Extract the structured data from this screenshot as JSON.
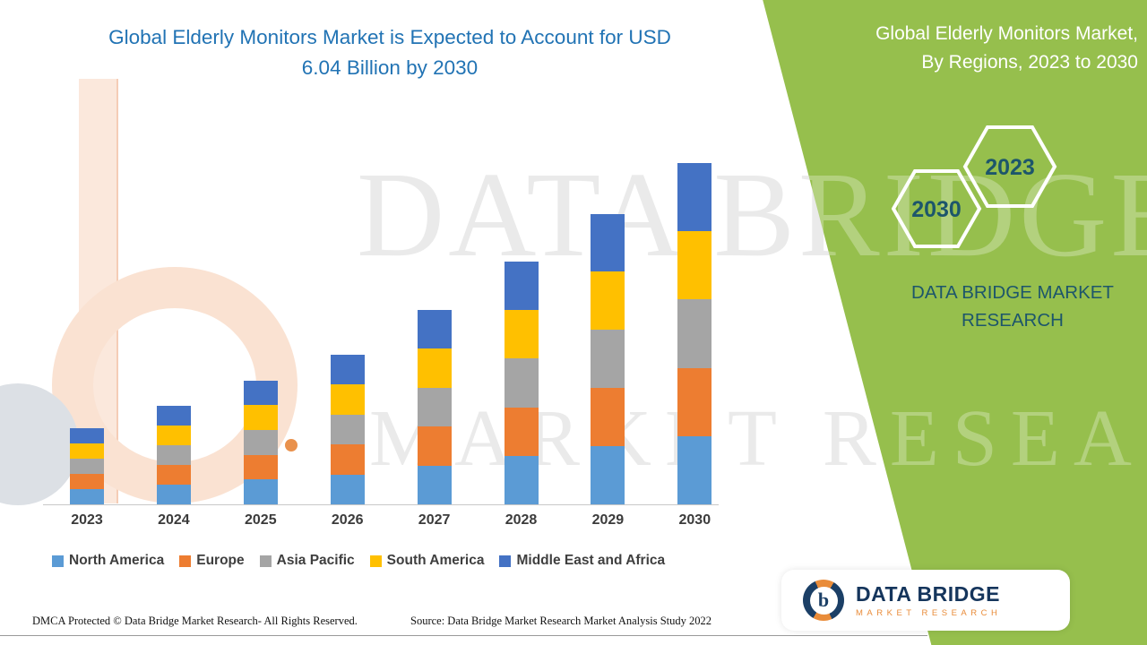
{
  "title": {
    "line1": "Global Elderly Monitors Market is Expected to Account for USD",
    "line2": "6.04 Billion by 2030"
  },
  "side_panel": {
    "heading_line1": "Global Elderly Monitors Market,",
    "heading_line2": "By Regions, 2023 to 2030",
    "hexagon_left": "2030",
    "hexagon_right": "2023",
    "brand": "DATA BRIDGE MARKET RESEARCH",
    "panel_color": "#96BF4D"
  },
  "watermark": {
    "line1": "DATA BRIDGE",
    "line2": "MARKET RESEARCH"
  },
  "logo": {
    "letter": "b",
    "name": "DATA BRIDGE",
    "tagline": "MARKET RESEARCH"
  },
  "footer": {
    "dmca": "DMCA Protected © Data Bridge Market Research- All Rights Reserved.",
    "source": "Source: Data Bridge Market Research Market Analysis Study 2022"
  },
  "chart_data": {
    "type": "bar",
    "subtype": "stacked",
    "title": "Global Elderly Monitors Market is Expected to Account for USD 6.04 Billion by 2030",
    "unit": "USD Billion",
    "categories": [
      "2023",
      "2024",
      "2025",
      "2026",
      "2027",
      "2028",
      "2029",
      "2030"
    ],
    "series": [
      {
        "name": "North America",
        "color": "#5B9BD5",
        "values": [
          0.27,
          0.35,
          0.44,
          0.53,
          0.69,
          0.86,
          1.03,
          1.21
        ]
      },
      {
        "name": "Europe",
        "color": "#ED7D31",
        "values": [
          0.27,
          0.35,
          0.44,
          0.53,
          0.69,
          0.86,
          1.03,
          1.21
        ]
      },
      {
        "name": "Asia Pacific",
        "color": "#A5A5A5",
        "values": [
          0.27,
          0.35,
          0.44,
          0.53,
          0.69,
          0.86,
          1.03,
          1.21
        ]
      },
      {
        "name": "South America",
        "color": "#FFC000",
        "values": [
          0.27,
          0.35,
          0.44,
          0.53,
          0.69,
          0.86,
          1.03,
          1.21
        ]
      },
      {
        "name": "Middle East and Africa",
        "color": "#4472C4",
        "values": [
          0.27,
          0.35,
          0.44,
          0.53,
          0.69,
          0.86,
          1.03,
          1.21
        ]
      }
    ],
    "estimated_totals": [
      1.35,
      1.75,
      2.2,
      2.65,
      3.45,
      4.3,
      5.15,
      6.04
    ],
    "ylim": [
      0,
      6.5
    ],
    "grid": false,
    "y_axis_visible": false,
    "legend_position": "bottom"
  }
}
